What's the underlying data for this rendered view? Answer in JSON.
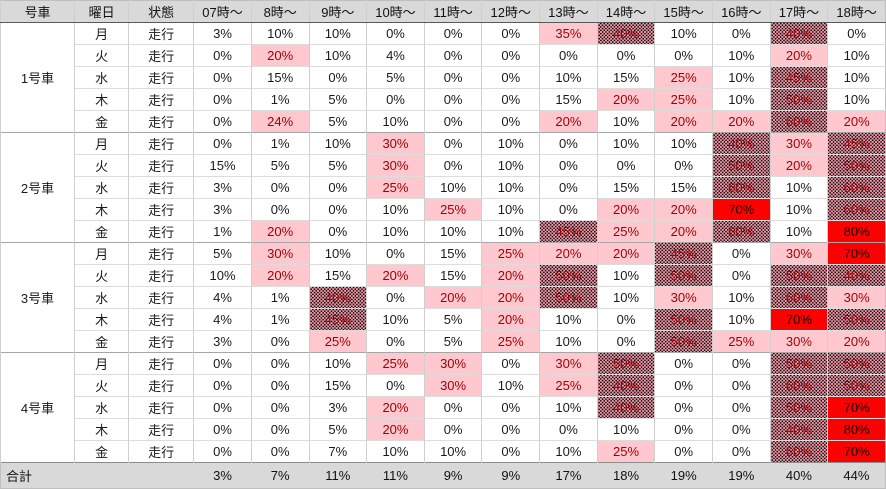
{
  "chart_data": {
    "type": "heatmap",
    "unit": "%",
    "row_header_columns": [
      "号車",
      "曜日",
      "状態"
    ],
    "time_columns": [
      "07時～",
      "8時～",
      "9時～",
      "10時～",
      "11時～",
      "12時～",
      "13時～",
      "14時～",
      "15時～",
      "16時～",
      "17時～",
      "18時～"
    ],
    "groups": [
      {
        "car": "1号車",
        "rows": [
          {
            "day": "月",
            "status": "走行",
            "values": [
              3,
              10,
              10,
              0,
              0,
              0,
              35,
              40,
              10,
              0,
              40,
              0
            ]
          },
          {
            "day": "火",
            "status": "走行",
            "values": [
              0,
              20,
              10,
              4,
              0,
              0,
              0,
              0,
              0,
              10,
              20,
              10
            ]
          },
          {
            "day": "水",
            "status": "走行",
            "values": [
              0,
              15,
              0,
              5,
              0,
              0,
              10,
              15,
              25,
              10,
              45,
              10
            ]
          },
          {
            "day": "木",
            "status": "走行",
            "values": [
              0,
              1,
              5,
              0,
              0,
              0,
              15,
              20,
              25,
              10,
              50,
              10
            ]
          },
          {
            "day": "金",
            "status": "走行",
            "values": [
              0,
              24,
              5,
              10,
              0,
              0,
              20,
              10,
              20,
              20,
              60,
              20
            ]
          }
        ]
      },
      {
        "car": "2号車",
        "rows": [
          {
            "day": "月",
            "status": "走行",
            "values": [
              0,
              1,
              10,
              30,
              0,
              10,
              0,
              10,
              10,
              40,
              30,
              45
            ]
          },
          {
            "day": "火",
            "status": "走行",
            "values": [
              15,
              5,
              5,
              30,
              0,
              10,
              0,
              0,
              0,
              50,
              20,
              50
            ]
          },
          {
            "day": "水",
            "status": "走行",
            "values": [
              3,
              0,
              0,
              25,
              10,
              10,
              0,
              15,
              15,
              60,
              10,
              60
            ]
          },
          {
            "day": "木",
            "status": "走行",
            "values": [
              3,
              0,
              0,
              10,
              25,
              10,
              0,
              20,
              20,
              70,
              10,
              60
            ]
          },
          {
            "day": "金",
            "status": "走行",
            "values": [
              1,
              20,
              0,
              10,
              10,
              10,
              45,
              25,
              20,
              60,
              10,
              80
            ]
          }
        ]
      },
      {
        "car": "3号車",
        "rows": [
          {
            "day": "月",
            "status": "走行",
            "values": [
              5,
              30,
              10,
              0,
              15,
              25,
              20,
              20,
              45,
              0,
              30,
              70
            ]
          },
          {
            "day": "火",
            "status": "走行",
            "values": [
              10,
              20,
              15,
              20,
              15,
              20,
              50,
              10,
              50,
              0,
              50,
              40
            ]
          },
          {
            "day": "水",
            "status": "走行",
            "values": [
              4,
              1,
              40,
              0,
              20,
              20,
              50,
              10,
              30,
              10,
              60,
              30
            ]
          },
          {
            "day": "木",
            "status": "走行",
            "values": [
              4,
              1,
              45,
              10,
              5,
              20,
              10,
              0,
              50,
              10,
              70,
              50
            ]
          },
          {
            "day": "金",
            "status": "走行",
            "values": [
              3,
              0,
              25,
              0,
              5,
              25,
              10,
              0,
              50,
              25,
              30,
              20
            ]
          }
        ]
      },
      {
        "car": "4号車",
        "rows": [
          {
            "day": "月",
            "status": "走行",
            "values": [
              0,
              0,
              10,
              25,
              30,
              0,
              30,
              50,
              0,
              0,
              50,
              50
            ]
          },
          {
            "day": "火",
            "status": "走行",
            "values": [
              0,
              0,
              15,
              0,
              30,
              10,
              25,
              40,
              0,
              0,
              60,
              50
            ]
          },
          {
            "day": "水",
            "status": "走行",
            "values": [
              0,
              0,
              3,
              20,
              0,
              0,
              10,
              40,
              0,
              0,
              50,
              70
            ]
          },
          {
            "day": "木",
            "status": "走行",
            "values": [
              0,
              0,
              5,
              20,
              0,
              0,
              0,
              10,
              0,
              0,
              40,
              80
            ]
          },
          {
            "day": "金",
            "status": "走行",
            "values": [
              0,
              0,
              7,
              10,
              10,
              0,
              10,
              25,
              0,
              0,
              60,
              70
            ]
          }
        ]
      }
    ],
    "total_row": {
      "label": "合計",
      "values": [
        3,
        7,
        11,
        11,
        9,
        9,
        17,
        18,
        19,
        19,
        40,
        44
      ]
    }
  },
  "colors": {
    "header_bg": "#d9d9d9",
    "total_bg": "#d9d9d9",
    "pink_bg": "#ffc7ce",
    "pink_text": "#9c0006",
    "pattern_bg": "#ff9fb0",
    "pattern_dot": "#000000",
    "red_bg": "#ff0000",
    "red_text": "#000000",
    "grid_line": "#cfcfcf",
    "group_line": "#a6a6a6",
    "header_border": "#595959"
  },
  "style_thresholds": {
    "pink_min": 20,
    "pattern_min": 40,
    "red_min": 70
  }
}
